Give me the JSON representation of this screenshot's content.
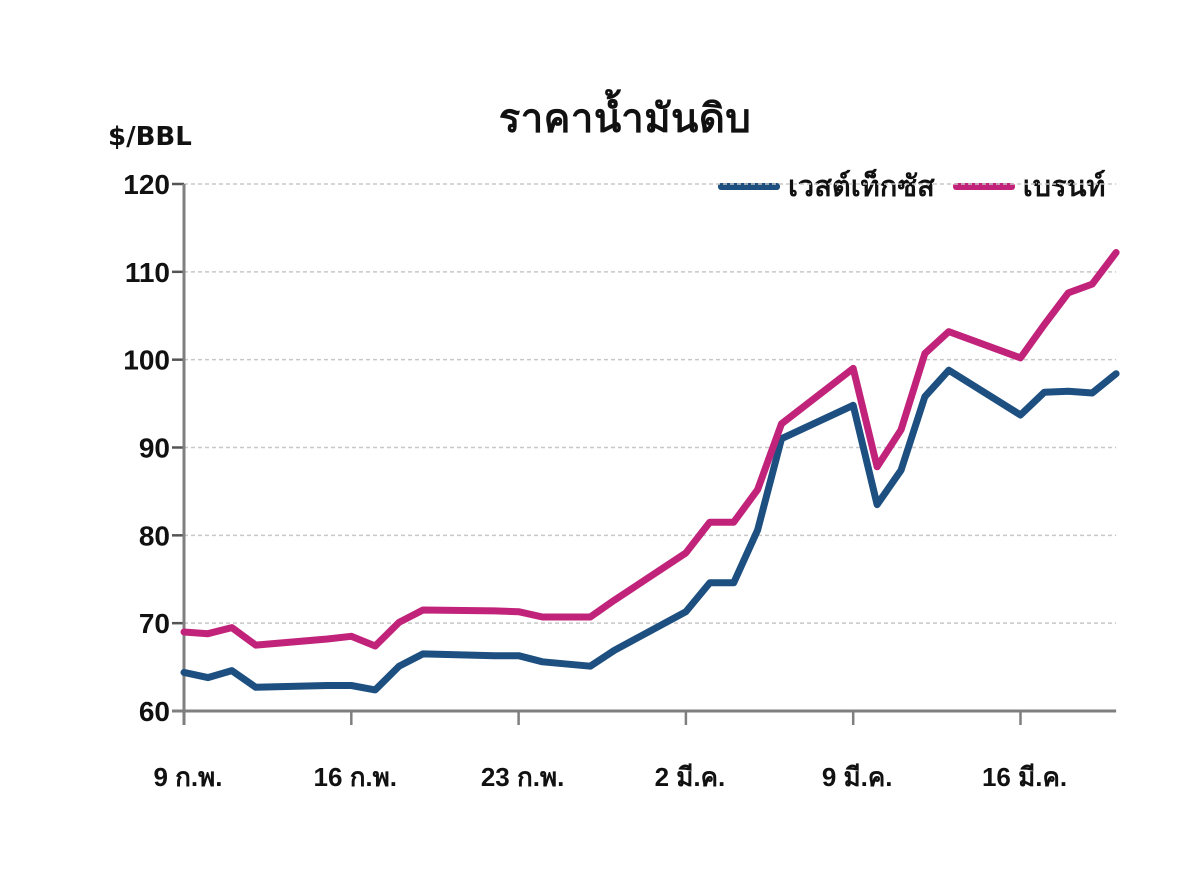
{
  "chart_data": {
    "type": "line",
    "title": "ราคาน้ำมันดิบ",
    "ylabel": "$/BBL",
    "xlabel": "",
    "ylim": [
      60,
      120
    ],
    "yticks": [
      60,
      70,
      80,
      90,
      100,
      110,
      120
    ],
    "grid": "horizontal dashed",
    "legend_position": "top-right",
    "x_tick_labels": [
      "9 ก.พ.",
      "16 ก.พ.",
      "23 ก.พ.",
      "2 มี.ค.",
      "9 มี.ค.",
      "16 มี.ค."
    ],
    "x": [
      "9 ก.พ.",
      "10 ก.พ.",
      "11 ก.พ.",
      "12 ก.พ.",
      "15 ก.พ.",
      "16 ก.พ.",
      "17 ก.พ.",
      "18 ก.พ.",
      "19 ก.พ.",
      "22 ก.พ.",
      "23 ก.พ.",
      "24 ก.พ.",
      "26 ก.พ.",
      "27 ก.พ.",
      "2 มี.ค.",
      "3 มี.ค.",
      "4 มี.ค.",
      "5 มี.ค.",
      "6 มี.ค.",
      "9 มี.ค.",
      "10 มี.ค.",
      "11 มี.ค.",
      "12 มี.ค.",
      "13 มี.ค.",
      "16 มี.ค.",
      "17 มี.ค.",
      "18 มี.ค.",
      "19 มี.ค.",
      "20 มี.ค."
    ],
    "x_day_offset": [
      0,
      1,
      2,
      3,
      6,
      7,
      8,
      9,
      10,
      13,
      14,
      15,
      17,
      18,
      21,
      22,
      23,
      24,
      25,
      28,
      29,
      30,
      31,
      32,
      35,
      36,
      37,
      38,
      39
    ],
    "series": [
      {
        "name": "เวสต์เท็กซัส",
        "color": "#1d4f80",
        "values": [
          64.4,
          63.8,
          64.6,
          62.7,
          62.9,
          62.9,
          62.4,
          65.1,
          66.5,
          66.3,
          66.3,
          65.6,
          65.1,
          66.9,
          71.3,
          74.6,
          74.6,
          80.6,
          91.0,
          94.8,
          83.5,
          87.4,
          95.8,
          98.8,
          93.7,
          96.3,
          96.4,
          96.2,
          98.4
        ]
      },
      {
        "name": "เบรนท์",
        "color": "#c2237a",
        "values": [
          69.0,
          68.8,
          69.5,
          67.5,
          68.2,
          68.5,
          67.4,
          70.1,
          71.5,
          71.4,
          71.3,
          70.7,
          70.7,
          72.6,
          78.0,
          81.5,
          81.5,
          85.2,
          92.7,
          99.0,
          87.8,
          92.0,
          100.7,
          103.2,
          100.2,
          104.0,
          107.6,
          108.6,
          112.2
        ]
      }
    ]
  },
  "colors": {
    "axis": "#7f7f7f",
    "grid": "#c8c8c8"
  }
}
